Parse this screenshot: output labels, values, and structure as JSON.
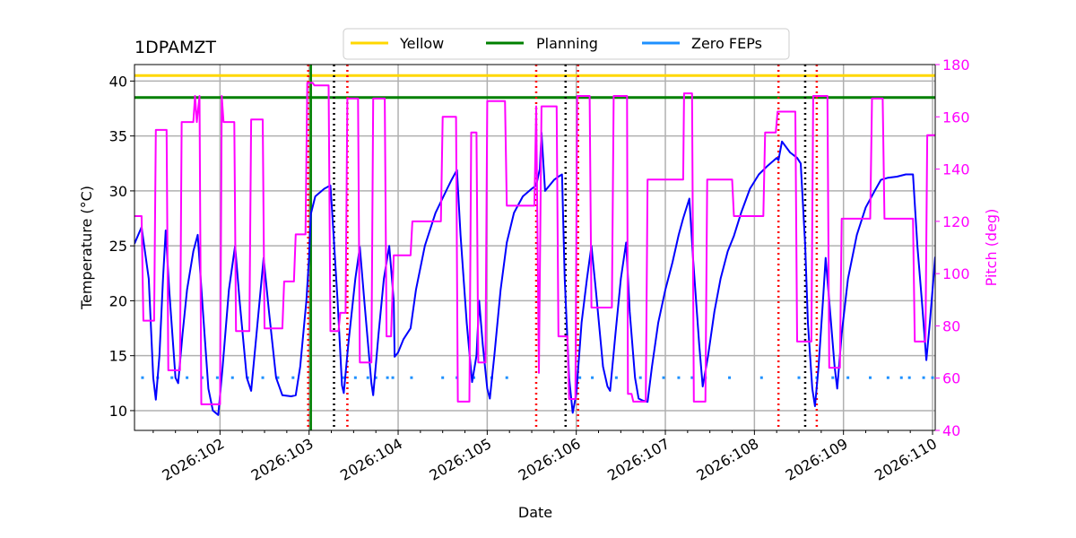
{
  "chart_data": {
    "type": "line",
    "title": "1DPAMZT",
    "xlabel": "Date",
    "ylabel_left": "Temperature ($^\\circ$C)",
    "ylabel_left_display": "Temperature (°C)",
    "ylabel_right": "Pitch (deg)",
    "xlim": [
      101.04,
      110.03
    ],
    "ylim_left": [
      8.2,
      41.5
    ],
    "ylim_right": [
      40,
      180
    ],
    "x_ticks": [
      102,
      103,
      104,
      105,
      106,
      107,
      108,
      109,
      110
    ],
    "x_tick_labels": [
      "2026:102",
      "2026:103",
      "2026:104",
      "2026:105",
      "2026:106",
      "2026:107",
      "2026:108",
      "2026:109",
      "2026:110"
    ],
    "y_left_ticks": [
      10,
      15,
      20,
      25,
      30,
      35,
      40
    ],
    "y_right_ticks": [
      40,
      60,
      80,
      100,
      120,
      140,
      160,
      180
    ],
    "grid": true,
    "legend": {
      "location": "top-center",
      "entries": [
        "Yellow",
        "Planning",
        "Zero FEPs"
      ]
    },
    "limits": [
      {
        "name": "Yellow",
        "value": 40.5,
        "color": "#FFD700"
      },
      {
        "name": "Planning",
        "value": 38.5,
        "color": "#008000"
      }
    ],
    "planning_vline_x": 103.02,
    "zero_feps": {
      "name": "Zero FEPs",
      "color": "#1E90FF",
      "y": 13,
      "x": [
        101.13,
        101.3,
        101.46,
        101.63,
        101.8,
        101.97,
        102.14,
        102.31,
        102.48,
        102.65,
        102.82,
        103.38,
        103.52,
        103.66,
        103.75,
        103.88,
        103.94,
        104.15,
        104.5,
        104.66,
        104.85,
        105.05,
        105.22,
        106.04,
        106.18,
        106.45,
        106.72,
        106.98,
        107.15,
        107.3,
        107.45,
        107.72,
        108.08,
        108.5,
        108.7,
        108.88,
        109.05,
        109.3,
        109.5,
        109.65,
        109.74,
        109.9,
        110.0
      ]
    },
    "vlines": [
      {
        "x": 102.99,
        "color": "#FF0000"
      },
      {
        "x": 103.28,
        "color": "#000000"
      },
      {
        "x": 103.43,
        "color": "#FF0000"
      },
      {
        "x": 105.55,
        "color": "#FF0000"
      },
      {
        "x": 105.88,
        "color": "#000000"
      },
      {
        "x": 106.02,
        "color": "#FF0000"
      },
      {
        "x": 108.27,
        "color": "#FF0000"
      },
      {
        "x": 108.57,
        "color": "#000000"
      },
      {
        "x": 108.7,
        "color": "#FF0000"
      }
    ],
    "series": [
      {
        "name": "1DPAMZT temperature",
        "axis": "left",
        "color": "#0000FF",
        "points": [
          [
            101.04,
            25.2
          ],
          [
            101.12,
            26.7
          ],
          [
            101.2,
            22
          ],
          [
            101.25,
            13
          ],
          [
            101.28,
            11
          ],
          [
            101.32,
            15
          ],
          [
            101.36,
            22
          ],
          [
            101.39,
            26.4
          ],
          [
            101.43,
            21
          ],
          [
            101.5,
            13
          ],
          [
            101.53,
            12.5
          ],
          [
            101.58,
            17
          ],
          [
            101.63,
            21
          ],
          [
            101.7,
            24.5
          ],
          [
            101.75,
            26
          ],
          [
            101.8,
            20
          ],
          [
            101.87,
            12
          ],
          [
            101.92,
            10
          ],
          [
            101.98,
            9.6
          ],
          [
            102.03,
            14
          ],
          [
            102.1,
            21
          ],
          [
            102.17,
            25
          ],
          [
            102.22,
            20
          ],
          [
            102.3,
            13
          ],
          [
            102.35,
            11.8
          ],
          [
            102.41,
            17
          ],
          [
            102.49,
            23.9
          ],
          [
            102.55,
            19
          ],
          [
            102.63,
            13
          ],
          [
            102.7,
            11.4
          ],
          [
            102.8,
            11.3
          ],
          [
            102.85,
            11.4
          ],
          [
            102.9,
            14
          ],
          [
            102.97,
            20
          ],
          [
            103.0,
            24
          ],
          [
            103.02,
            27.9
          ],
          [
            103.07,
            29.5
          ],
          [
            103.17,
            30.2
          ],
          [
            103.24,
            30.5
          ],
          [
            103.26,
            28
          ],
          [
            103.32,
            20
          ],
          [
            103.37,
            12.3
          ],
          [
            103.39,
            11.6
          ],
          [
            103.44,
            16
          ],
          [
            103.52,
            22
          ],
          [
            103.57,
            24.9
          ],
          [
            103.62,
            20
          ],
          [
            103.7,
            12.5
          ],
          [
            103.72,
            11.4
          ],
          [
            103.78,
            17
          ],
          [
            103.84,
            22
          ],
          [
            103.9,
            25
          ],
          [
            103.95,
            20
          ],
          [
            103.96,
            14.9
          ],
          [
            104.0,
            15.3
          ],
          [
            104.06,
            16.5
          ],
          [
            104.14,
            17.5
          ],
          [
            104.2,
            21
          ],
          [
            104.3,
            25
          ],
          [
            104.42,
            28
          ],
          [
            104.55,
            30.2
          ],
          [
            104.6,
            31
          ],
          [
            104.66,
            31.9
          ],
          [
            104.7,
            26
          ],
          [
            104.77,
            18
          ],
          [
            104.83,
            12.6
          ],
          [
            104.88,
            15
          ],
          [
            104.91,
            20
          ],
          [
            104.95,
            16
          ],
          [
            105.0,
            12
          ],
          [
            105.03,
            11.1
          ],
          [
            105.08,
            15
          ],
          [
            105.15,
            21
          ],
          [
            105.22,
            25.3
          ],
          [
            105.3,
            28
          ],
          [
            105.4,
            29.5
          ],
          [
            105.5,
            30.2
          ],
          [
            105.55,
            30.5
          ],
          [
            105.59,
            32
          ],
          [
            105.61,
            35.3
          ],
          [
            105.65,
            30
          ],
          [
            105.7,
            30.5
          ],
          [
            105.75,
            31
          ],
          [
            105.8,
            31.3
          ],
          [
            105.84,
            31.5
          ],
          [
            105.87,
            22
          ],
          [
            105.92,
            13
          ],
          [
            105.96,
            9.8
          ],
          [
            106.0,
            11.5
          ],
          [
            106.06,
            18
          ],
          [
            106.12,
            22
          ],
          [
            106.17,
            25
          ],
          [
            106.22,
            21
          ],
          [
            106.3,
            14
          ],
          [
            106.35,
            12.2
          ],
          [
            106.38,
            11.8
          ],
          [
            106.44,
            17
          ],
          [
            106.5,
            22
          ],
          [
            106.56,
            25.3
          ],
          [
            106.6,
            19
          ],
          [
            106.66,
            13
          ],
          [
            106.7,
            11.1
          ],
          [
            106.75,
            10.9
          ],
          [
            106.8,
            10.8
          ],
          [
            106.85,
            14
          ],
          [
            106.92,
            18
          ],
          [
            107.0,
            21
          ],
          [
            107.08,
            23.5
          ],
          [
            107.15,
            26
          ],
          [
            107.2,
            27.5
          ],
          [
            107.27,
            29.3
          ],
          [
            107.31,
            24
          ],
          [
            107.38,
            16
          ],
          [
            107.42,
            12.2
          ],
          [
            107.48,
            15
          ],
          [
            107.55,
            19
          ],
          [
            107.62,
            22
          ],
          [
            107.7,
            24.5
          ],
          [
            107.77,
            25.9
          ],
          [
            107.85,
            28
          ],
          [
            107.95,
            30.2
          ],
          [
            108.05,
            31.5
          ],
          [
            108.15,
            32.3
          ],
          [
            108.25,
            33
          ],
          [
            108.27,
            32.8
          ],
          [
            108.31,
            34.5
          ],
          [
            108.4,
            33.5
          ],
          [
            108.48,
            33
          ],
          [
            108.52,
            32.5
          ],
          [
            108.57,
            25
          ],
          [
            108.6,
            18
          ],
          [
            108.65,
            12
          ],
          [
            108.68,
            10.4
          ],
          [
            108.72,
            14
          ],
          [
            108.77,
            20
          ],
          [
            108.8,
            23.9
          ],
          [
            108.85,
            19
          ],
          [
            108.9,
            14
          ],
          [
            108.93,
            12
          ],
          [
            108.98,
            17
          ],
          [
            109.05,
            22
          ],
          [
            109.15,
            26
          ],
          [
            109.25,
            28.5
          ],
          [
            109.35,
            30
          ],
          [
            109.42,
            31
          ],
          [
            109.5,
            31.2
          ],
          [
            109.6,
            31.3
          ],
          [
            109.7,
            31.5
          ],
          [
            109.78,
            31.5
          ],
          [
            109.83,
            25
          ],
          [
            109.88,
            20
          ],
          [
            109.93,
            14.6
          ],
          [
            109.97,
            18
          ],
          [
            110.03,
            24
          ]
        ]
      },
      {
        "name": "Pitch",
        "axis": "right",
        "color": "#FF00FF",
        "points": [
          [
            101.04,
            122
          ],
          [
            101.12,
            122
          ],
          [
            101.14,
            82
          ],
          [
            101.26,
            82
          ],
          [
            101.28,
            155
          ],
          [
            101.4,
            155
          ],
          [
            101.42,
            63
          ],
          [
            101.55,
            63
          ],
          [
            101.57,
            158
          ],
          [
            101.7,
            158
          ],
          [
            101.72,
            168
          ],
          [
            101.74,
            158
          ],
          [
            101.77,
            168
          ],
          [
            101.79,
            50
          ],
          [
            102.0,
            50
          ],
          [
            102.02,
            168
          ],
          [
            102.04,
            158
          ],
          [
            102.16,
            158
          ],
          [
            102.18,
            78
          ],
          [
            102.33,
            78
          ],
          [
            102.35,
            159
          ],
          [
            102.48,
            159
          ],
          [
            102.5,
            79
          ],
          [
            102.7,
            79
          ],
          [
            102.72,
            97
          ],
          [
            102.83,
            97
          ],
          [
            102.85,
            115
          ],
          [
            102.96,
            115
          ],
          [
            102.98,
            173
          ],
          [
            103.04,
            173
          ],
          [
            103.06,
            172
          ],
          [
            103.22,
            172
          ],
          [
            103.24,
            78
          ],
          [
            103.33,
            78
          ],
          [
            103.35,
            85
          ],
          [
            103.41,
            85
          ],
          [
            103.43,
            167
          ],
          [
            103.55,
            167
          ],
          [
            103.57,
            66
          ],
          [
            103.7,
            66
          ],
          [
            103.72,
            167
          ],
          [
            103.85,
            167
          ],
          [
            103.87,
            76
          ],
          [
            103.92,
            76
          ],
          [
            103.95,
            107
          ],
          [
            104.14,
            107
          ],
          [
            104.16,
            120
          ],
          [
            104.48,
            120
          ],
          [
            104.5,
            160
          ],
          [
            104.65,
            160
          ],
          [
            104.67,
            51
          ],
          [
            104.8,
            51
          ],
          [
            104.82,
            154
          ],
          [
            104.88,
            154
          ],
          [
            104.9,
            66
          ],
          [
            104.98,
            66
          ],
          [
            105.0,
            166
          ],
          [
            105.2,
            166
          ],
          [
            105.22,
            126
          ],
          [
            105.53,
            126
          ],
          [
            105.55,
            164
          ],
          [
            105.58,
            62
          ],
          [
            105.61,
            164
          ],
          [
            105.78,
            164
          ],
          [
            105.8,
            76
          ],
          [
            105.9,
            76
          ],
          [
            105.92,
            52
          ],
          [
            105.99,
            52
          ],
          [
            106.01,
            168
          ],
          [
            106.15,
            168
          ],
          [
            106.17,
            87
          ],
          [
            106.4,
            87
          ],
          [
            106.42,
            168
          ],
          [
            106.57,
            168
          ],
          [
            106.58,
            54
          ],
          [
            106.62,
            54
          ],
          [
            106.64,
            51
          ],
          [
            106.78,
            51
          ],
          [
            106.8,
            136
          ],
          [
            107.1,
            136
          ],
          [
            107.2,
            136
          ],
          [
            107.21,
            169
          ],
          [
            107.3,
            169
          ],
          [
            107.32,
            51
          ],
          [
            107.45,
            51
          ],
          [
            107.47,
            136
          ],
          [
            107.75,
            136
          ],
          [
            107.77,
            122
          ],
          [
            108.1,
            122
          ],
          [
            108.12,
            154
          ],
          [
            108.24,
            154
          ],
          [
            108.26,
            162
          ],
          [
            108.46,
            162
          ],
          [
            108.48,
            74
          ],
          [
            108.64,
            74
          ],
          [
            108.66,
            168
          ],
          [
            108.82,
            168
          ],
          [
            108.84,
            64
          ],
          [
            108.96,
            64
          ],
          [
            108.98,
            121
          ],
          [
            109.3,
            121
          ],
          [
            109.32,
            167
          ],
          [
            109.44,
            167
          ],
          [
            109.46,
            121
          ],
          [
            109.78,
            121
          ],
          [
            109.8,
            74
          ],
          [
            109.92,
            74
          ],
          [
            109.94,
            153
          ],
          [
            110.03,
            153
          ]
        ]
      }
    ]
  }
}
